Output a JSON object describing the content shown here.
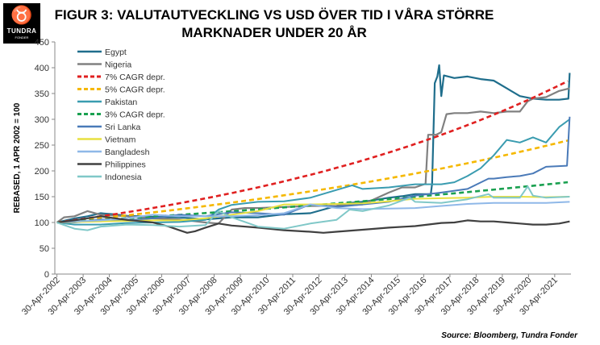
{
  "header": {
    "title_line1": "FIGUR 3: VALUTAUTVECKLING  VS USD ÖVER TID I VÅRA STÖRRE",
    "title_line2": "MARKNADER  UNDER 20 ÅR",
    "source": "Source: Bloomberg, Tundra Fonder"
  },
  "logo": {
    "name": "TUNDRA",
    "sub": "FONDER",
    "icon": "bull-head-icon"
  },
  "chart_data": {
    "type": "line",
    "ylabel": "REBASED, 1 APR 2002 = 100",
    "xlabel": "",
    "ylim": [
      0,
      450
    ],
    "yticks": [
      0,
      50,
      100,
      150,
      200,
      250,
      300,
      350,
      400,
      450
    ],
    "xlim": [
      2002.25,
      2021.95
    ],
    "xtick_labels": [
      "30-Apr-2002",
      "30-Apr-2003",
      "30-Apr-2004",
      "30-Apr-2005",
      "30-Apr-2006",
      "30-Apr-2007",
      "30-Apr-2008",
      "30-Apr-2009",
      "30-Apr-2010",
      "30-Apr-2011",
      "30-Apr-2012",
      "30-Apr-2013",
      "30-Apr-2014",
      "30-Apr-2015",
      "30-Apr-2016",
      "30-Apr-2017",
      "30-Apr-2018",
      "30-Apr-2019",
      "30-Apr-2020",
      "30-Apr-2021"
    ],
    "legend_position": "top-left",
    "grid": false,
    "series": [
      {
        "name": "Egypt",
        "color": "#1f6e8c",
        "dash": "solid",
        "width": 2.2,
        "points": [
          [
            2002.33,
            100
          ],
          [
            2003.0,
            108
          ],
          [
            2003.5,
            112
          ],
          [
            2004.0,
            118
          ],
          [
            2004.5,
            116
          ],
          [
            2005.0,
            113
          ],
          [
            2006.0,
            111
          ],
          [
            2007.0,
            110
          ],
          [
            2008.0,
            106
          ],
          [
            2009.0,
            110
          ],
          [
            2010.0,
            110
          ],
          [
            2011.0,
            116
          ],
          [
            2012.0,
            118
          ],
          [
            2013.0,
            132
          ],
          [
            2013.5,
            138
          ],
          [
            2014.0,
            140
          ],
          [
            2015.0,
            148
          ],
          [
            2015.5,
            151
          ],
          [
            2016.0,
            155
          ],
          [
            2016.6,
            155
          ],
          [
            2016.65,
            175
          ],
          [
            2016.75,
            370
          ],
          [
            2016.85,
            383
          ],
          [
            2016.92,
            405
          ],
          [
            2017.0,
            345
          ],
          [
            2017.1,
            385
          ],
          [
            2017.5,
            380
          ],
          [
            2018.0,
            383
          ],
          [
            2018.5,
            378
          ],
          [
            2019.0,
            375
          ],
          [
            2019.5,
            360
          ],
          [
            2020.0,
            345
          ],
          [
            2020.5,
            340
          ],
          [
            2021.0,
            338
          ],
          [
            2021.5,
            338
          ],
          [
            2021.85,
            340
          ],
          [
            2021.9,
            390
          ]
        ]
      },
      {
        "name": "Nigeria",
        "color": "#808080",
        "dash": "solid",
        "width": 2.2,
        "points": [
          [
            2002.33,
            100
          ],
          [
            2002.6,
            110
          ],
          [
            2003.0,
            112
          ],
          [
            2003.5,
            122
          ],
          [
            2004.0,
            115
          ],
          [
            2005.0,
            112
          ],
          [
            2006.0,
            108
          ],
          [
            2007.0,
            106
          ],
          [
            2008.0,
            100
          ],
          [
            2008.5,
            98
          ],
          [
            2009.0,
            125
          ],
          [
            2009.5,
            128
          ],
          [
            2010.0,
            128
          ],
          [
            2011.0,
            130
          ],
          [
            2012.0,
            132
          ],
          [
            2013.0,
            132
          ],
          [
            2014.0,
            135
          ],
          [
            2015.0,
            158
          ],
          [
            2015.5,
            168
          ],
          [
            2016.0,
            168
          ],
          [
            2016.4,
            175
          ],
          [
            2016.5,
            270
          ],
          [
            2016.8,
            270
          ],
          [
            2017.0,
            275
          ],
          [
            2017.2,
            310
          ],
          [
            2017.5,
            312
          ],
          [
            2018.0,
            312
          ],
          [
            2018.5,
            315
          ],
          [
            2019.0,
            312
          ],
          [
            2019.5,
            315
          ],
          [
            2020.0,
            315
          ],
          [
            2020.3,
            335
          ],
          [
            2020.5,
            340
          ],
          [
            2021.0,
            343
          ],
          [
            2021.5,
            355
          ],
          [
            2021.9,
            360
          ]
        ]
      },
      {
        "name": "7% CAGR depr.",
        "color": "#e02020",
        "dash": "6,4",
        "width": 2.6,
        "cagr": 0.07
      },
      {
        "name": "5% CAGR depr.",
        "color": "#f5b800",
        "dash": "6,4",
        "width": 2.6,
        "cagr": 0.05
      },
      {
        "name": "Pakistan",
        "color": "#3a9cb0",
        "dash": "solid",
        "width": 2.0,
        "points": [
          [
            2002.33,
            100
          ],
          [
            2003.0,
            96
          ],
          [
            2004.0,
            96
          ],
          [
            2005.0,
            99
          ],
          [
            2006.0,
            100
          ],
          [
            2007.0,
            101
          ],
          [
            2008.0,
            105
          ],
          [
            2008.5,
            125
          ],
          [
            2009.0,
            134
          ],
          [
            2010.0,
            140
          ],
          [
            2011.0,
            141
          ],
          [
            2012.0,
            148
          ],
          [
            2013.0,
            163
          ],
          [
            2013.6,
            172
          ],
          [
            2014.0,
            165
          ],
          [
            2015.0,
            168
          ],
          [
            2016.0,
            174
          ],
          [
            2017.0,
            174
          ],
          [
            2017.5,
            178
          ],
          [
            2018.0,
            190
          ],
          [
            2018.5,
            205
          ],
          [
            2019.0,
            230
          ],
          [
            2019.5,
            260
          ],
          [
            2020.0,
            255
          ],
          [
            2020.5,
            265
          ],
          [
            2021.0,
            255
          ],
          [
            2021.5,
            285
          ],
          [
            2021.9,
            300
          ]
        ]
      },
      {
        "name": "3% CAGR depr.",
        "color": "#1aa050",
        "dash": "6,4",
        "width": 2.6,
        "cagr": 0.03
      },
      {
        "name": "Sri Lanka",
        "color": "#4a7ab8",
        "dash": "solid",
        "width": 2.0,
        "points": [
          [
            2002.33,
            100
          ],
          [
            2003.0,
            100
          ],
          [
            2004.0,
            106
          ],
          [
            2005.0,
            104
          ],
          [
            2006.0,
            108
          ],
          [
            2007.0,
            115
          ],
          [
            2008.0,
            112
          ],
          [
            2009.0,
            120
          ],
          [
            2010.0,
            118
          ],
          [
            2011.0,
            115
          ],
          [
            2012.0,
            135
          ],
          [
            2013.0,
            130
          ],
          [
            2014.0,
            135
          ],
          [
            2015.0,
            140
          ],
          [
            2016.0,
            152
          ],
          [
            2017.0,
            158
          ],
          [
            2018.0,
            165
          ],
          [
            2018.8,
            185
          ],
          [
            2019.0,
            185
          ],
          [
            2019.5,
            188
          ],
          [
            2020.0,
            190
          ],
          [
            2020.5,
            195
          ],
          [
            2021.0,
            208
          ],
          [
            2021.8,
            210
          ],
          [
            2021.9,
            305
          ]
        ]
      },
      {
        "name": "Vietnam",
        "color": "#e8e040",
        "dash": "solid",
        "width": 2.0,
        "points": [
          [
            2002.33,
            100
          ],
          [
            2003.0,
            101
          ],
          [
            2004.0,
            102
          ],
          [
            2005.0,
            103
          ],
          [
            2006.0,
            104
          ],
          [
            2007.0,
            104
          ],
          [
            2008.0,
            108
          ],
          [
            2009.0,
            115
          ],
          [
            2010.0,
            122
          ],
          [
            2011.0,
            135
          ],
          [
            2012.0,
            135
          ],
          [
            2013.0,
            136
          ],
          [
            2014.0,
            137
          ],
          [
            2015.0,
            141
          ],
          [
            2016.0,
            146
          ],
          [
            2017.0,
            147
          ],
          [
            2018.0,
            148
          ],
          [
            2019.0,
            150
          ],
          [
            2020.0,
            150
          ],
          [
            2021.0,
            149
          ],
          [
            2021.9,
            150
          ]
        ]
      },
      {
        "name": "Bangladesh",
        "color": "#8fb8e8",
        "dash": "solid",
        "width": 2.0,
        "points": [
          [
            2002.33,
            100
          ],
          [
            2003.0,
            102
          ],
          [
            2004.0,
            104
          ],
          [
            2005.0,
            108
          ],
          [
            2006.0,
            115
          ],
          [
            2007.0,
            112
          ],
          [
            2008.0,
            112
          ],
          [
            2009.0,
            112
          ],
          [
            2010.0,
            114
          ],
          [
            2011.0,
            118
          ],
          [
            2012.0,
            135
          ],
          [
            2013.0,
            128
          ],
          [
            2014.0,
            126
          ],
          [
            2015.0,
            127
          ],
          [
            2016.0,
            128
          ],
          [
            2017.0,
            132
          ],
          [
            2018.0,
            136
          ],
          [
            2019.0,
            138
          ],
          [
            2020.0,
            138
          ],
          [
            2021.0,
            138
          ],
          [
            2021.9,
            140
          ]
        ]
      },
      {
        "name": "Philippines",
        "color": "#404040",
        "dash": "solid",
        "width": 2.2,
        "points": [
          [
            2002.33,
            100
          ],
          [
            2003.0,
            104
          ],
          [
            2004.0,
            112
          ],
          [
            2005.0,
            105
          ],
          [
            2006.0,
            100
          ],
          [
            2006.6,
            92
          ],
          [
            2007.0,
            85
          ],
          [
            2007.3,
            80
          ],
          [
            2007.6,
            83
          ],
          [
            2008.0,
            90
          ],
          [
            2008.5,
            98
          ],
          [
            2009.0,
            94
          ],
          [
            2010.0,
            90
          ],
          [
            2011.0,
            85
          ],
          [
            2012.0,
            82
          ],
          [
            2012.5,
            80
          ],
          [
            2013.0,
            82
          ],
          [
            2014.0,
            86
          ],
          [
            2015.0,
            90
          ],
          [
            2016.0,
            93
          ],
          [
            2017.0,
            99
          ],
          [
            2017.5,
            100
          ],
          [
            2018.0,
            104
          ],
          [
            2018.5,
            102
          ],
          [
            2019.0,
            102
          ],
          [
            2019.5,
            100
          ],
          [
            2020.0,
            98
          ],
          [
            2020.5,
            96
          ],
          [
            2021.0,
            96
          ],
          [
            2021.5,
            98
          ],
          [
            2021.9,
            102
          ]
        ]
      },
      {
        "name": "Indonesia",
        "color": "#80c8c8",
        "dash": "solid",
        "width": 2.0,
        "points": [
          [
            2002.33,
            100
          ],
          [
            2002.6,
            95
          ],
          [
            2003.0,
            88
          ],
          [
            2003.5,
            85
          ],
          [
            2004.0,
            92
          ],
          [
            2005.0,
            96
          ],
          [
            2006.0,
            95
          ],
          [
            2007.0,
            92
          ],
          [
            2008.0,
            95
          ],
          [
            2008.5,
            122
          ],
          [
            2009.0,
            110
          ],
          [
            2010.0,
            92
          ],
          [
            2011.0,
            88
          ],
          [
            2012.0,
            98
          ],
          [
            2013.0,
            105
          ],
          [
            2013.5,
            125
          ],
          [
            2014.0,
            122
          ],
          [
            2015.0,
            133
          ],
          [
            2015.8,
            148
          ],
          [
            2016.0,
            140
          ],
          [
            2017.0,
            138
          ],
          [
            2018.0,
            145
          ],
          [
            2018.8,
            155
          ],
          [
            2019.0,
            148
          ],
          [
            2020.0,
            148
          ],
          [
            2020.3,
            170
          ],
          [
            2020.5,
            152
          ],
          [
            2021.0,
            148
          ],
          [
            2021.9,
            150
          ]
        ]
      }
    ]
  }
}
